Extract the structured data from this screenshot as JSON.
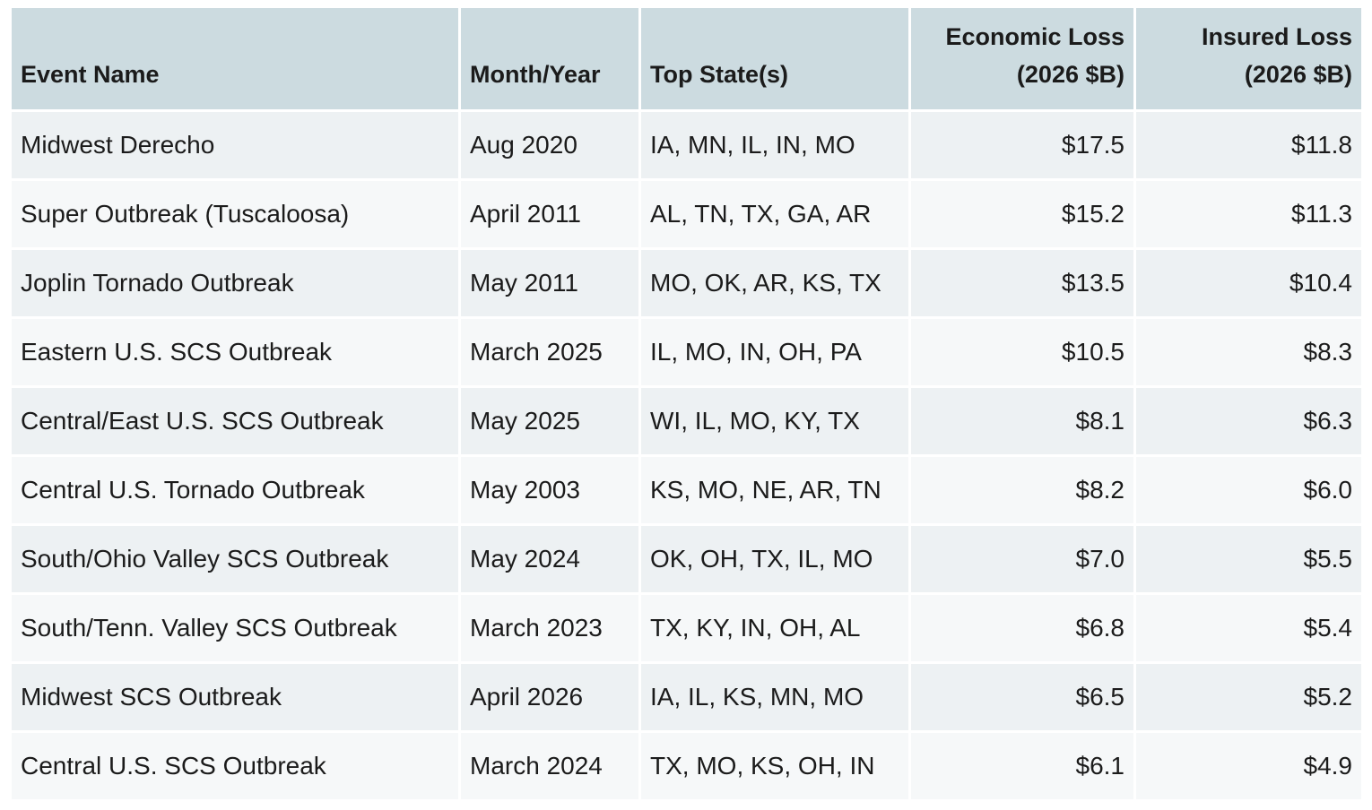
{
  "table": {
    "headers": {
      "event_name": "Event Name",
      "month_year": "Month/Year",
      "top_states": "Top State(s)",
      "economic_loss_line1": "Economic Loss",
      "economic_loss_line2": "(2026 $B)",
      "insured_loss_line1": "Insured Loss",
      "insured_loss_line2": "(2026 $B)"
    },
    "rows": [
      {
        "event": "Midwest Derecho",
        "date": "Aug 2020",
        "states": "IA, MN, IL, IN, MO",
        "economic": "$17.5",
        "insured": "$11.8"
      },
      {
        "event": "Super Outbreak (Tuscaloosa)",
        "date": "April 2011",
        "states": "AL, TN, TX, GA, AR",
        "economic": "$15.2",
        "insured": "$11.3"
      },
      {
        "event": "Joplin Tornado Outbreak",
        "date": "May 2011",
        "states": "MO, OK, AR, KS, TX",
        "economic": "$13.5",
        "insured": "$10.4"
      },
      {
        "event": "Eastern U.S. SCS Outbreak",
        "date": "March 2025",
        "states": "IL, MO, IN, OH, PA",
        "economic": "$10.5",
        "insured": "$8.3"
      },
      {
        "event": "Central/East U.S. SCS Outbreak",
        "date": "May 2025",
        "states": "WI, IL, MO, KY, TX",
        "economic": "$8.1",
        "insured": "$6.3"
      },
      {
        "event": "Central U.S. Tornado Outbreak",
        "date": "May 2003",
        "states": "KS, MO, NE, AR, TN",
        "economic": "$8.2",
        "insured": "$6.0"
      },
      {
        "event": "South/Ohio Valley SCS Outbreak",
        "date": "May 2024",
        "states": "OK, OH, TX, IL, MO",
        "economic": "$7.0",
        "insured": "$5.5"
      },
      {
        "event": "South/Tenn. Valley SCS Outbreak",
        "date": "March 2023",
        "states": "TX, KY, IN, OH, AL",
        "economic": "$6.8",
        "insured": "$5.4"
      },
      {
        "event": "Midwest SCS Outbreak",
        "date": "April 2026",
        "states": "IA, IL, KS, MN, MO",
        "economic": "$6.5",
        "insured": "$5.2"
      },
      {
        "event": "Central U.S. SCS Outbreak",
        "date": "March 2024",
        "states": "TX, MO, KS, OH, IN",
        "economic": "$6.1",
        "insured": "$4.9"
      }
    ]
  }
}
